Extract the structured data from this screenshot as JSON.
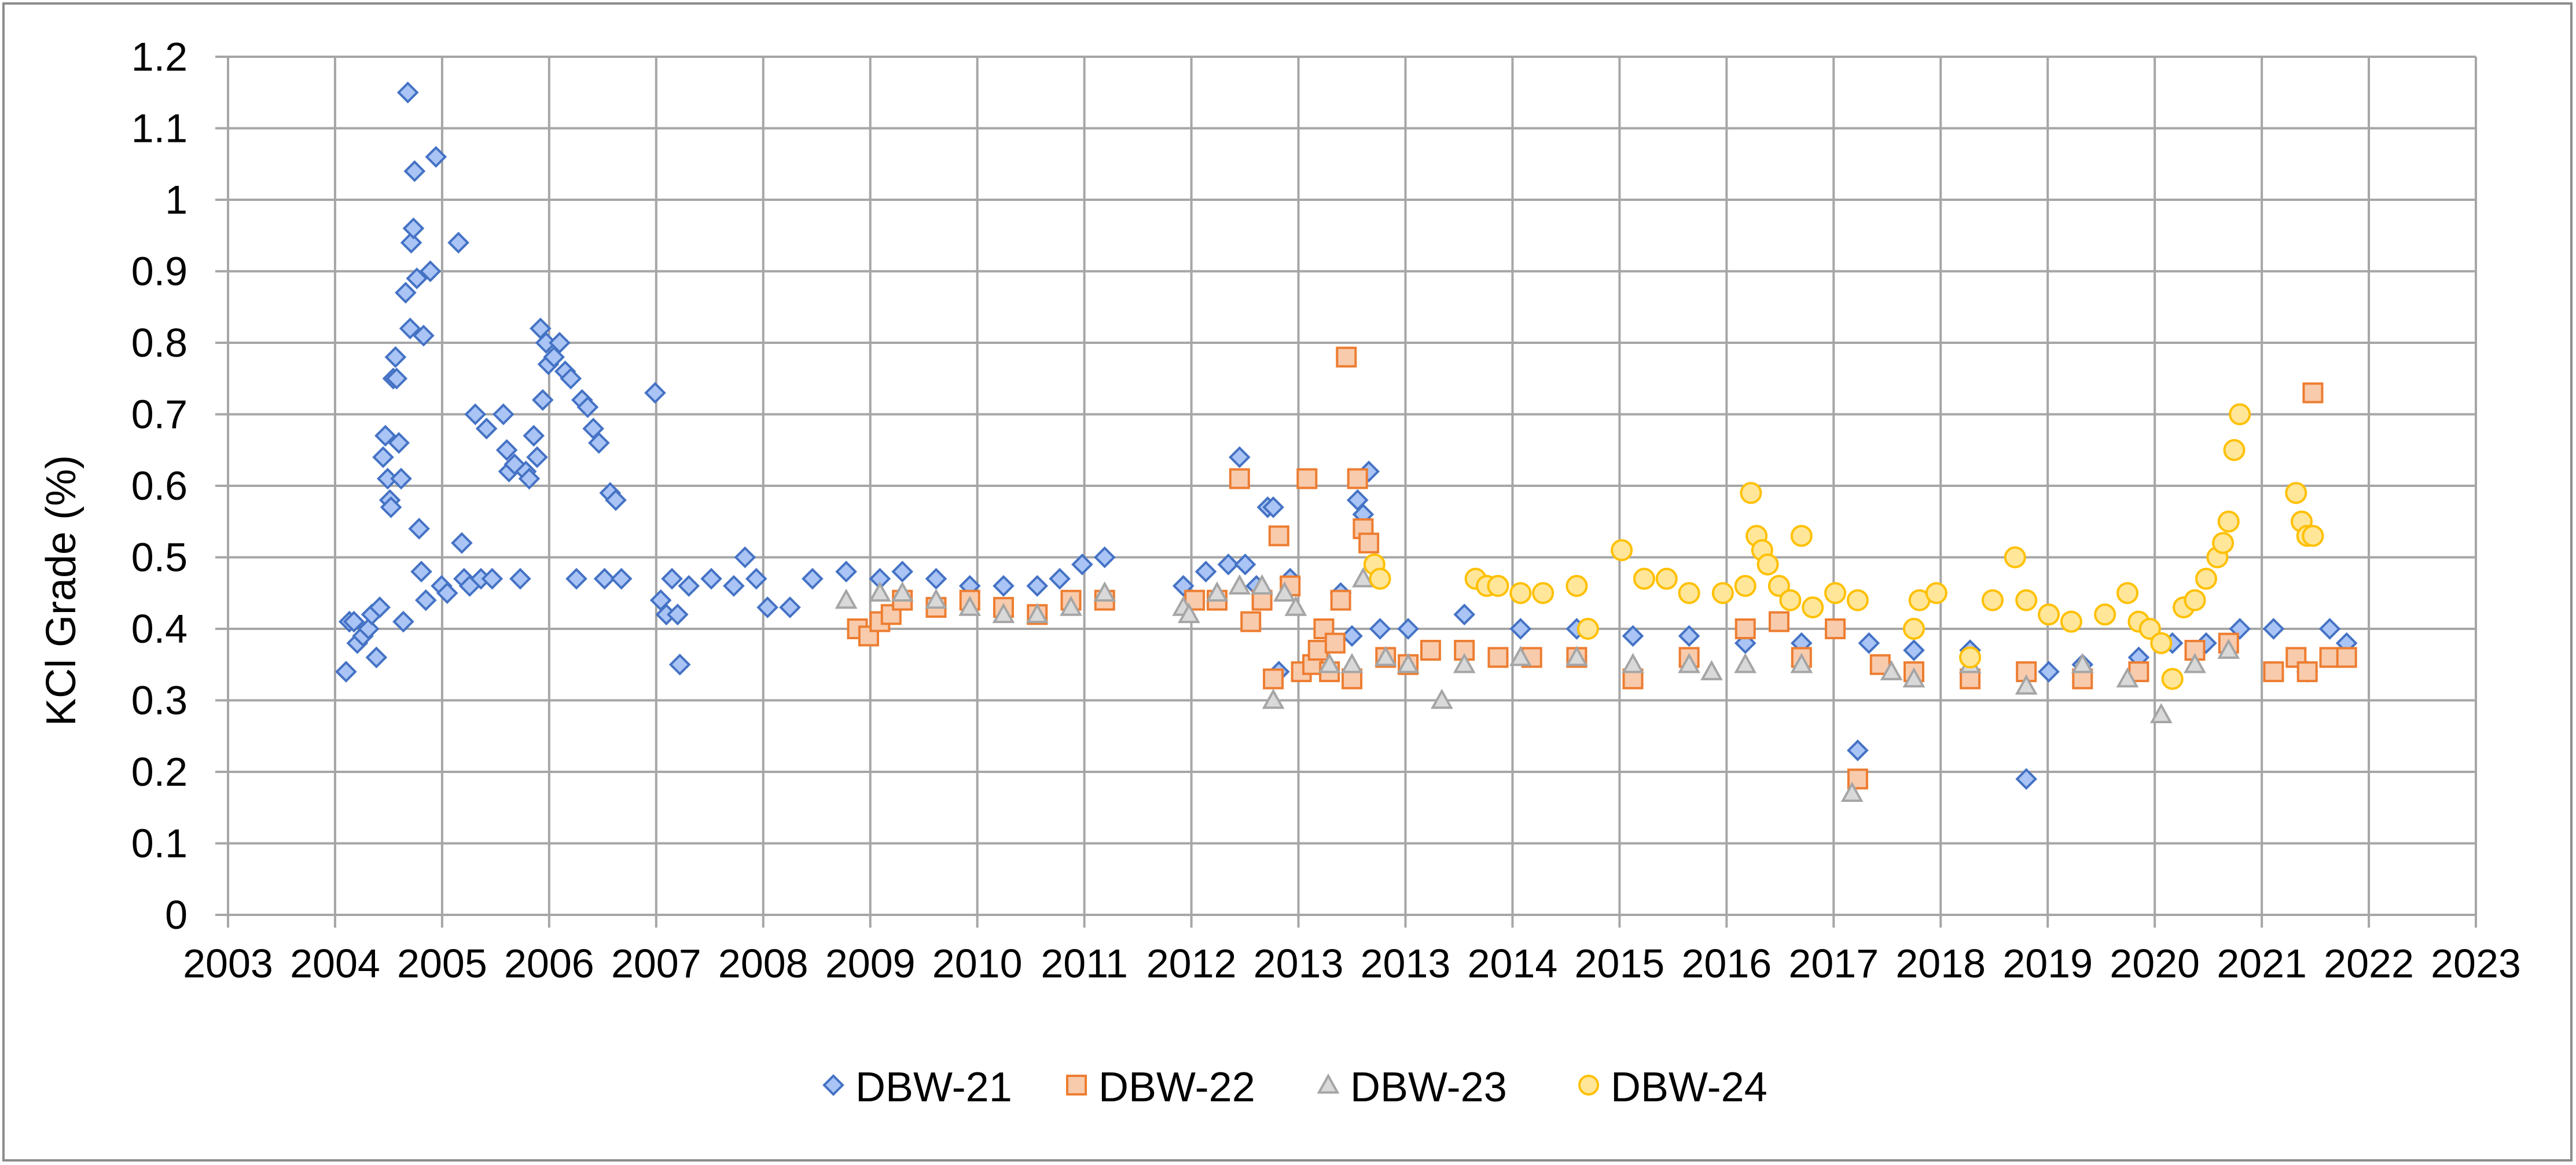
{
  "chart_data": {
    "type": "scatter",
    "title": "",
    "xlabel": "",
    "ylabel": "KCl Grade (%)",
    "xlim": [
      2003,
      2023
    ],
    "ylim": [
      0,
      1.2
    ],
    "x_ticks": [
      "2003",
      "2004",
      "2005",
      "2006",
      "2007",
      "2008",
      "2009",
      "2010",
      "2011",
      "2012",
      "2013",
      "2013",
      "2014",
      "2015",
      "2016",
      "2017",
      "2018",
      "2019",
      "2020",
      "2021",
      "2022",
      "2023"
    ],
    "y_ticks": [
      "0",
      "0.1",
      "0.2",
      "0.3",
      "0.4",
      "0.5",
      "0.6",
      "0.7",
      "0.8",
      "0.9",
      "1",
      "1.1",
      "1.2"
    ],
    "grid": true,
    "legend_position": "bottom",
    "series": [
      {
        "name": "DBW-21",
        "marker": "diamond",
        "fill": "#a9c4f5",
        "stroke": "#4472c4",
        "points": [
          [
            2004.05,
            0.34
          ],
          [
            2004.08,
            0.41
          ],
          [
            2004.12,
            0.41
          ],
          [
            2004.15,
            0.38
          ],
          [
            2004.2,
            0.39
          ],
          [
            2004.25,
            0.4
          ],
          [
            2004.28,
            0.42
          ],
          [
            2004.32,
            0.36
          ],
          [
            2004.35,
            0.43
          ],
          [
            2004.38,
            0.64
          ],
          [
            2004.4,
            0.67
          ],
          [
            2004.42,
            0.61
          ],
          [
            2004.44,
            0.58
          ],
          [
            2004.45,
            0.57
          ],
          [
            2004.47,
            0.75
          ],
          [
            2004.49,
            0.78
          ],
          [
            2004.5,
            0.75
          ],
          [
            2004.52,
            0.66
          ],
          [
            2004.54,
            0.61
          ],
          [
            2004.56,
            0.41
          ],
          [
            2004.58,
            0.87
          ],
          [
            2004.6,
            1.15
          ],
          [
            2004.62,
            0.82
          ],
          [
            2004.63,
            0.94
          ],
          [
            2004.65,
            0.96
          ],
          [
            2004.66,
            1.04
          ],
          [
            2004.68,
            0.89
          ],
          [
            2004.7,
            0.54
          ],
          [
            2004.72,
            0.48
          ],
          [
            2004.74,
            0.81
          ],
          [
            2004.76,
            0.44
          ],
          [
            2004.8,
            0.9
          ],
          [
            2004.85,
            1.06
          ],
          [
            2004.9,
            0.46
          ],
          [
            2004.95,
            0.45
          ],
          [
            2005.05,
            0.94
          ],
          [
            2005.08,
            0.52
          ],
          [
            2005.1,
            0.47
          ],
          [
            2005.15,
            0.46
          ],
          [
            2005.2,
            0.7
          ],
          [
            2005.25,
            0.47
          ],
          [
            2005.3,
            0.68
          ],
          [
            2005.35,
            0.47
          ],
          [
            2005.45,
            0.7
          ],
          [
            2005.48,
            0.65
          ],
          [
            2005.5,
            0.62
          ],
          [
            2005.55,
            0.63
          ],
          [
            2005.6,
            0.47
          ],
          [
            2005.65,
            0.62
          ],
          [
            2005.68,
            0.61
          ],
          [
            2005.72,
            0.67
          ],
          [
            2005.75,
            0.64
          ],
          [
            2005.78,
            0.82
          ],
          [
            2005.8,
            0.72
          ],
          [
            2005.83,
            0.8
          ],
          [
            2005.85,
            0.77
          ],
          [
            2005.9,
            0.78
          ],
          [
            2005.95,
            0.8
          ],
          [
            2006.0,
            0.76
          ],
          [
            2006.05,
            0.75
          ],
          [
            2006.1,
            0.47
          ],
          [
            2006.15,
            0.72
          ],
          [
            2006.2,
            0.71
          ],
          [
            2006.25,
            0.68
          ],
          [
            2006.3,
            0.66
          ],
          [
            2006.35,
            0.47
          ],
          [
            2006.4,
            0.59
          ],
          [
            2006.45,
            0.58
          ],
          [
            2006.5,
            0.47
          ],
          [
            2006.8,
            0.73
          ],
          [
            2006.85,
            0.44
          ],
          [
            2006.9,
            0.42
          ],
          [
            2006.95,
            0.47
          ],
          [
            2007.0,
            0.42
          ],
          [
            2007.02,
            0.35
          ],
          [
            2007.1,
            0.46
          ],
          [
            2007.3,
            0.47
          ],
          [
            2007.5,
            0.46
          ],
          [
            2007.6,
            0.5
          ],
          [
            2007.7,
            0.47
          ],
          [
            2007.8,
            0.43
          ],
          [
            2008.0,
            0.43
          ],
          [
            2008.2,
            0.47
          ],
          [
            2008.5,
            0.48
          ],
          [
            2008.8,
            0.47
          ],
          [
            2009.0,
            0.48
          ],
          [
            2009.3,
            0.47
          ],
          [
            2009.6,
            0.46
          ],
          [
            2009.9,
            0.46
          ],
          [
            2010.2,
            0.46
          ],
          [
            2010.4,
            0.47
          ],
          [
            2010.6,
            0.49
          ],
          [
            2010.8,
            0.5
          ],
          [
            2011.5,
            0.46
          ],
          [
            2011.7,
            0.48
          ],
          [
            2011.9,
            0.49
          ],
          [
            2012.0,
            0.64
          ],
          [
            2012.05,
            0.49
          ],
          [
            2012.15,
            0.46
          ],
          [
            2012.25,
            0.57
          ],
          [
            2012.3,
            0.57
          ],
          [
            2012.35,
            0.34
          ],
          [
            2012.45,
            0.47
          ],
          [
            2012.9,
            0.45
          ],
          [
            2013.0,
            0.39
          ],
          [
            2013.05,
            0.58
          ],
          [
            2013.1,
            0.56
          ],
          [
            2013.15,
            0.62
          ],
          [
            2013.25,
            0.4
          ],
          [
            2013.5,
            0.4
          ],
          [
            2014.0,
            0.42
          ],
          [
            2014.5,
            0.4
          ],
          [
            2015.0,
            0.4
          ],
          [
            2015.5,
            0.39
          ],
          [
            2016.0,
            0.39
          ],
          [
            2016.5,
            0.38
          ],
          [
            2017.0,
            0.38
          ],
          [
            2017.5,
            0.23
          ],
          [
            2017.6,
            0.38
          ],
          [
            2018.0,
            0.37
          ],
          [
            2018.5,
            0.37
          ],
          [
            2019.0,
            0.19
          ],
          [
            2019.2,
            0.34
          ],
          [
            2019.5,
            0.35
          ],
          [
            2020.0,
            0.36
          ],
          [
            2020.3,
            0.38
          ],
          [
            2020.6,
            0.38
          ],
          [
            2020.9,
            0.4
          ],
          [
            2021.2,
            0.4
          ],
          [
            2021.5,
            0.34
          ],
          [
            2021.7,
            0.4
          ],
          [
            2021.85,
            0.38
          ]
        ]
      },
      {
        "name": "DBW-22",
        "marker": "square",
        "fill": "#f8cbad",
        "stroke": "#ed7d31",
        "points": [
          [
            2008.6,
            0.4
          ],
          [
            2008.7,
            0.39
          ],
          [
            2008.8,
            0.41
          ],
          [
            2008.9,
            0.42
          ],
          [
            2009.0,
            0.44
          ],
          [
            2009.3,
            0.43
          ],
          [
            2009.6,
            0.44
          ],
          [
            2009.9,
            0.43
          ],
          [
            2010.2,
            0.42
          ],
          [
            2010.5,
            0.44
          ],
          [
            2010.8,
            0.44
          ],
          [
            2011.6,
            0.44
          ],
          [
            2011.8,
            0.44
          ],
          [
            2012.0,
            0.61
          ],
          [
            2012.1,
            0.41
          ],
          [
            2012.2,
            0.44
          ],
          [
            2012.3,
            0.33
          ],
          [
            2012.35,
            0.53
          ],
          [
            2012.45,
            0.46
          ],
          [
            2012.55,
            0.34
          ],
          [
            2012.6,
            0.61
          ],
          [
            2012.65,
            0.35
          ],
          [
            2012.7,
            0.37
          ],
          [
            2012.75,
            0.4
          ],
          [
            2012.8,
            0.34
          ],
          [
            2012.85,
            0.38
          ],
          [
            2012.9,
            0.44
          ],
          [
            2012.95,
            0.78
          ],
          [
            2013.0,
            0.33
          ],
          [
            2013.05,
            0.61
          ],
          [
            2013.1,
            0.54
          ],
          [
            2013.15,
            0.52
          ],
          [
            2013.3,
            0.36
          ],
          [
            2013.5,
            0.35
          ],
          [
            2013.7,
            0.37
          ],
          [
            2014.0,
            0.37
          ],
          [
            2014.3,
            0.36
          ],
          [
            2014.6,
            0.36
          ],
          [
            2015.0,
            0.36
          ],
          [
            2015.5,
            0.33
          ],
          [
            2016.0,
            0.36
          ],
          [
            2016.5,
            0.4
          ],
          [
            2016.8,
            0.41
          ],
          [
            2017.0,
            0.36
          ],
          [
            2017.3,
            0.4
          ],
          [
            2017.5,
            0.19
          ],
          [
            2017.7,
            0.35
          ],
          [
            2018.0,
            0.34
          ],
          [
            2018.5,
            0.33
          ],
          [
            2019.0,
            0.34
          ],
          [
            2019.5,
            0.33
          ],
          [
            2020.0,
            0.34
          ],
          [
            2020.5,
            0.37
          ],
          [
            2020.8,
            0.38
          ],
          [
            2021.2,
            0.34
          ],
          [
            2021.4,
            0.36
          ],
          [
            2021.5,
            0.34
          ],
          [
            2021.55,
            0.73
          ],
          [
            2021.7,
            0.36
          ],
          [
            2021.85,
            0.36
          ]
        ]
      },
      {
        "name": "DBW-23",
        "marker": "triangle",
        "fill": "#d9d9d9",
        "stroke": "#a5a5a5",
        "points": [
          [
            2008.5,
            0.44
          ],
          [
            2008.8,
            0.45
          ],
          [
            2009.0,
            0.45
          ],
          [
            2009.3,
            0.44
          ],
          [
            2009.6,
            0.43
          ],
          [
            2009.9,
            0.42
          ],
          [
            2010.2,
            0.42
          ],
          [
            2010.5,
            0.43
          ],
          [
            2010.8,
            0.45
          ],
          [
            2011.5,
            0.43
          ],
          [
            2011.55,
            0.42
          ],
          [
            2011.8,
            0.45
          ],
          [
            2012.0,
            0.46
          ],
          [
            2012.2,
            0.46
          ],
          [
            2012.3,
            0.3
          ],
          [
            2012.4,
            0.45
          ],
          [
            2012.5,
            0.43
          ],
          [
            2012.8,
            0.35
          ],
          [
            2013.0,
            0.35
          ],
          [
            2013.1,
            0.47
          ],
          [
            2013.3,
            0.36
          ],
          [
            2013.5,
            0.35
          ],
          [
            2013.8,
            0.3
          ],
          [
            2014.0,
            0.35
          ],
          [
            2014.5,
            0.36
          ],
          [
            2015.0,
            0.36
          ],
          [
            2015.5,
            0.35
          ],
          [
            2016.0,
            0.35
          ],
          [
            2016.2,
            0.34
          ],
          [
            2016.5,
            0.35
          ],
          [
            2017.0,
            0.35
          ],
          [
            2017.45,
            0.17
          ],
          [
            2017.8,
            0.34
          ],
          [
            2018.0,
            0.33
          ],
          [
            2018.5,
            0.35
          ],
          [
            2019.0,
            0.32
          ],
          [
            2019.5,
            0.35
          ],
          [
            2019.9,
            0.33
          ],
          [
            2020.2,
            0.28
          ],
          [
            2020.5,
            0.35
          ],
          [
            2020.8,
            0.37
          ]
        ]
      },
      {
        "name": "DBW-24",
        "marker": "circle",
        "fill": "#ffe699",
        "stroke": "#ffc000",
        "points": [
          [
            2013.2,
            0.49
          ],
          [
            2013.25,
            0.47
          ],
          [
            2014.1,
            0.47
          ],
          [
            2014.2,
            0.46
          ],
          [
            2014.3,
            0.46
          ],
          [
            2014.5,
            0.45
          ],
          [
            2014.7,
            0.45
          ],
          [
            2015.0,
            0.46
          ],
          [
            2015.1,
            0.4
          ],
          [
            2015.4,
            0.51
          ],
          [
            2015.6,
            0.47
          ],
          [
            2015.8,
            0.47
          ],
          [
            2016.0,
            0.45
          ],
          [
            2016.3,
            0.45
          ],
          [
            2016.5,
            0.46
          ],
          [
            2016.55,
            0.59
          ],
          [
            2016.6,
            0.53
          ],
          [
            2016.65,
            0.51
          ],
          [
            2016.7,
            0.49
          ],
          [
            2016.8,
            0.46
          ],
          [
            2016.9,
            0.44
          ],
          [
            2017.0,
            0.53
          ],
          [
            2017.1,
            0.43
          ],
          [
            2017.3,
            0.45
          ],
          [
            2017.5,
            0.44
          ],
          [
            2018.0,
            0.4
          ],
          [
            2018.05,
            0.44
          ],
          [
            2018.2,
            0.45
          ],
          [
            2018.5,
            0.36
          ],
          [
            2018.7,
            0.44
          ],
          [
            2018.9,
            0.5
          ],
          [
            2019.0,
            0.44
          ],
          [
            2019.2,
            0.42
          ],
          [
            2019.4,
            0.41
          ],
          [
            2019.7,
            0.42
          ],
          [
            2019.9,
            0.45
          ],
          [
            2020.0,
            0.41
          ],
          [
            2020.1,
            0.4
          ],
          [
            2020.2,
            0.38
          ],
          [
            2020.3,
            0.33
          ],
          [
            2020.4,
            0.43
          ],
          [
            2020.5,
            0.44
          ],
          [
            2020.6,
            0.47
          ],
          [
            2020.7,
            0.5
          ],
          [
            2020.75,
            0.52
          ],
          [
            2020.8,
            0.55
          ],
          [
            2020.85,
            0.65
          ],
          [
            2020.9,
            0.7
          ],
          [
            2021.4,
            0.59
          ],
          [
            2021.45,
            0.55
          ],
          [
            2021.5,
            0.53
          ],
          [
            2021.55,
            0.53
          ]
        ]
      }
    ]
  }
}
